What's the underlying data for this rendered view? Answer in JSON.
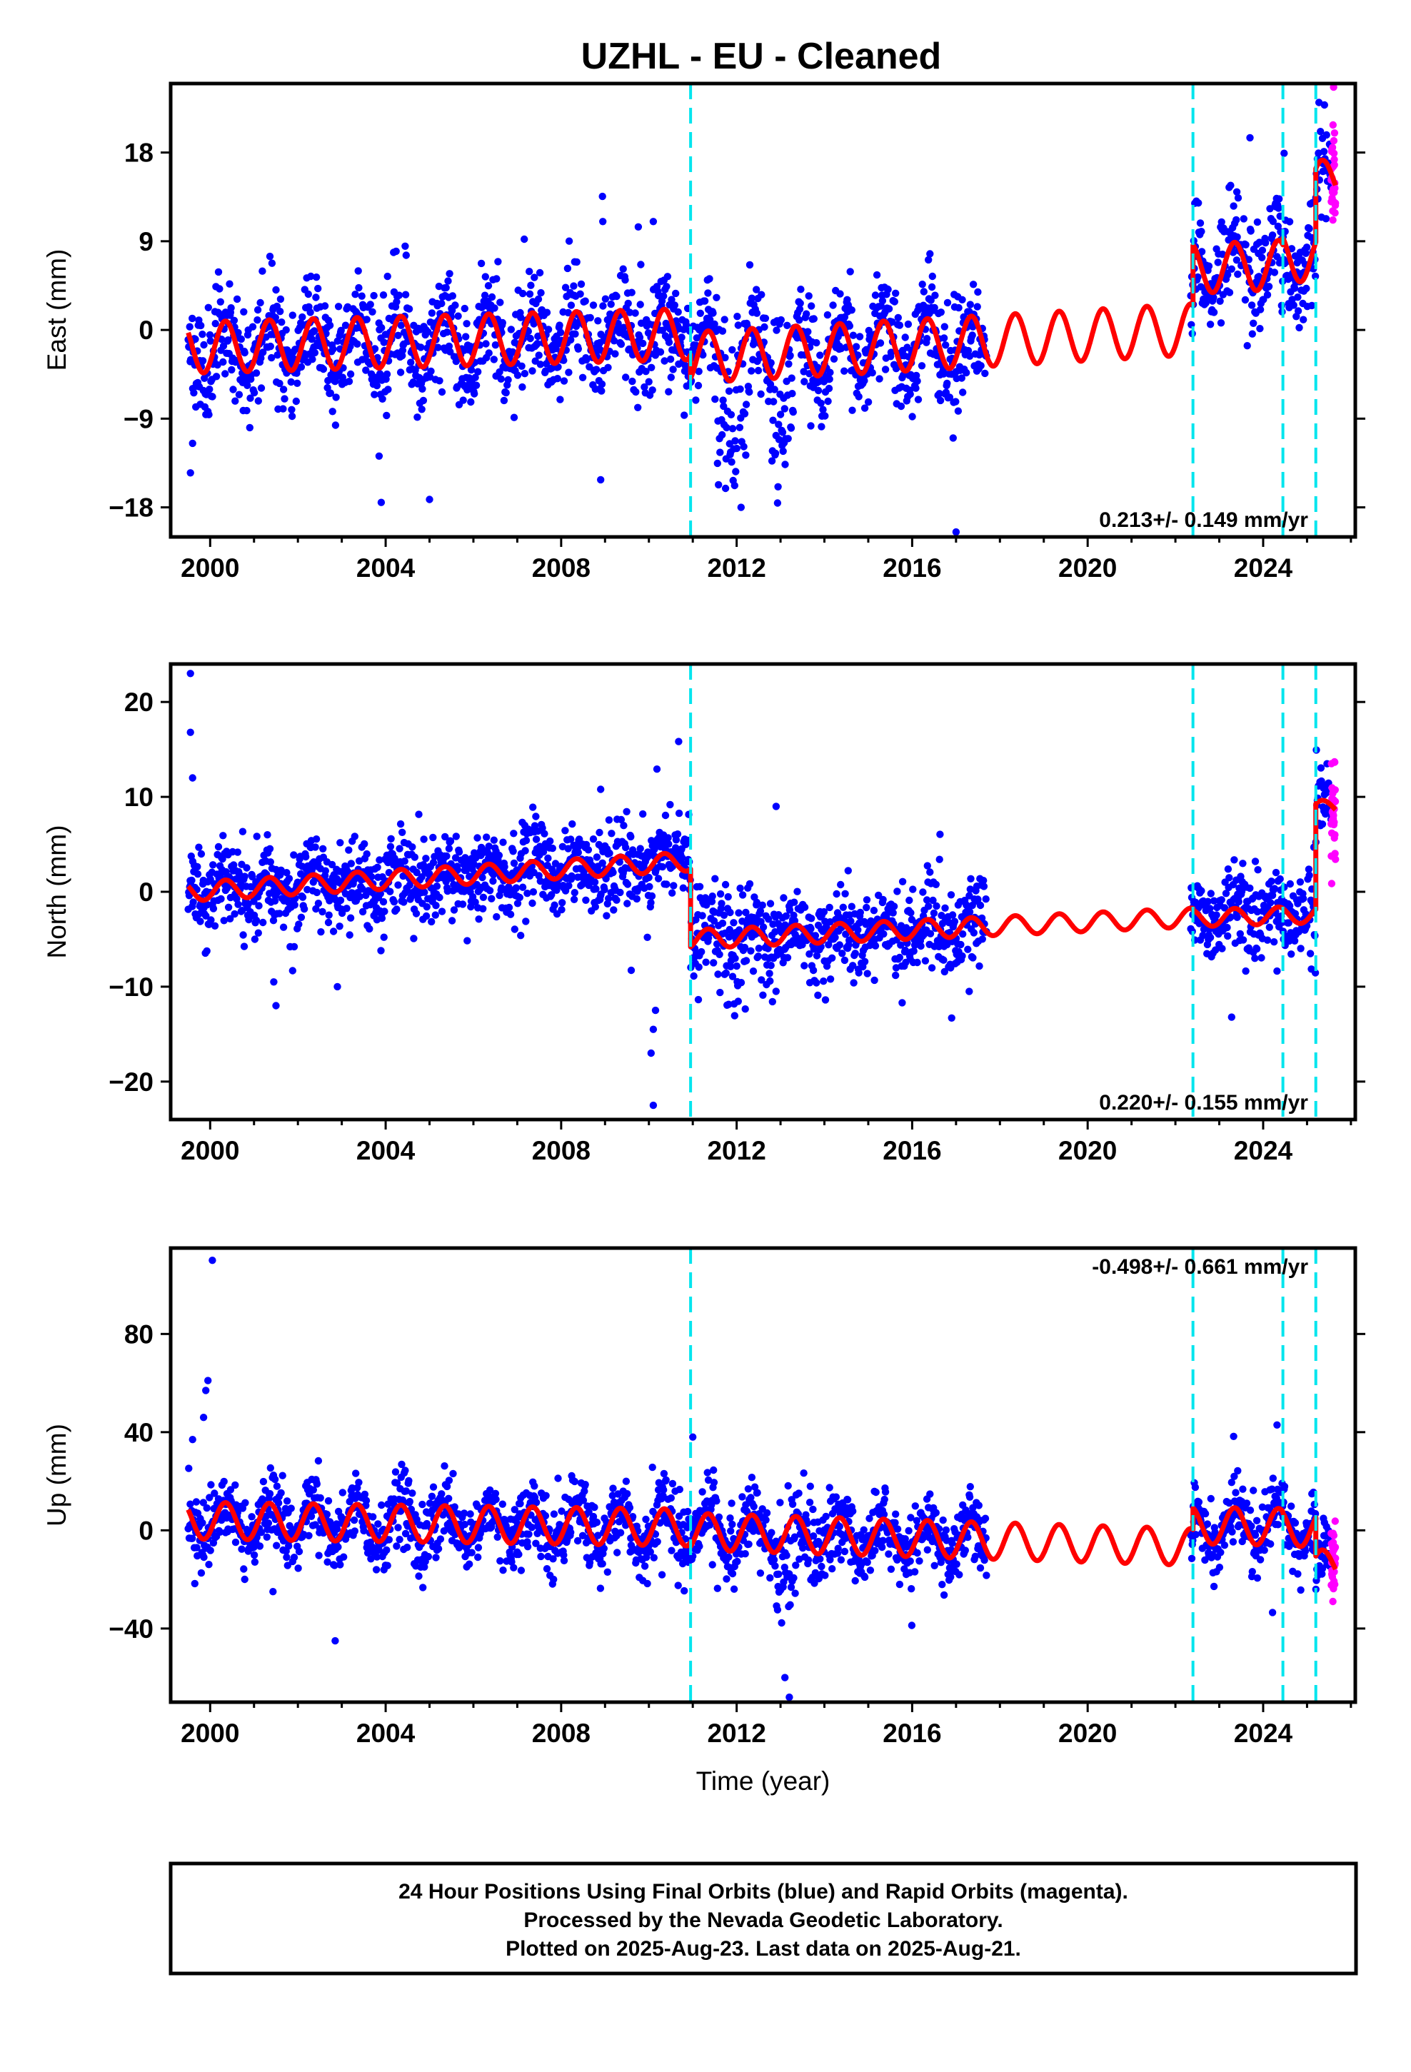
{
  "title": "UZHL  - EU - Cleaned",
  "footer": {
    "lines": [
      "24 Hour Positions Using Final Orbits (blue) and Rapid Orbits (magenta).",
      "Processed by the Nevada Geodetic Laboratory.",
      "Plotted on 2025-Aug-23. Last data on 2025-Aug-21."
    ]
  },
  "colors": {
    "final_orbits": "#0000ff",
    "rapid_orbits": "#ff00ff",
    "model_fit": "#ff0000",
    "breaks": "#00e5ee"
  },
  "chart_data": [
    {
      "type": "scatter",
      "component": "east",
      "ylabel": "East (mm)",
      "xlabel": "",
      "xlim": [
        1999.1,
        2026.1
      ],
      "ylim": [
        -21,
        25
      ],
      "yticks": [
        -18,
        -9,
        0,
        9,
        18
      ],
      "xticks": [
        2000,
        2004,
        2008,
        2012,
        2016,
        2020,
        2024
      ],
      "rate": "0.213+/- 0.149 mm/yr",
      "rate_position": "bottom-right",
      "breaks": [
        2010.95,
        2022.4,
        2024.45,
        2025.2
      ],
      "model": {
        "segments": [
          {
            "t0": 1999.5,
            "t1": 2010.95,
            "offset": -1.8,
            "slope": 0.12,
            "amp": 2.6
          },
          {
            "t0": 2010.95,
            "t1": 2022.4,
            "offset": -2.8,
            "slope": 0.25,
            "amp": 2.6
          },
          {
            "t0": 2022.4,
            "t1": 2024.45,
            "offset": 6.2,
            "slope": 0.2,
            "amp": 2.5
          },
          {
            "t0": 2024.45,
            "t1": 2025.2,
            "offset": 7.3,
            "slope": 0.2,
            "amp": 2.5
          },
          {
            "t0": 2025.2,
            "t1": 2025.65,
            "offset": 15.2,
            "slope": 0.2,
            "amp": 2.0
          }
        ]
      },
      "final_ranges": [
        [
          1999.5,
          2017.7
        ],
        [
          2022.35,
          2025.55
        ]
      ],
      "final_noise": 2.6,
      "rapid_range": [
        2025.55,
        2025.65
      ],
      "rapid_noise": 3.5,
      "anomalies": [
        {
          "t0": 2011.5,
          "t1": 2012.3,
          "shift": -7,
          "noise": 3.5
        },
        {
          "t0": 2012.8,
          "t1": 2013.3,
          "shift": -8,
          "noise": 3.0
        }
      ],
      "outliers": [
        [
          1999.55,
          -14.5
        ],
        [
          1999.6,
          -11.5
        ],
        [
          2003.9,
          -17.5
        ],
        [
          2003.85,
          -12.8
        ],
        [
          2005.0,
          -17.2
        ],
        [
          2008.9,
          -15.2
        ],
        [
          2008.95,
          11
        ],
        [
          2010.1,
          11
        ],
        [
          2012.1,
          -18
        ],
        [
          2014.1,
          -5
        ],
        [
          2017.0,
          -20.5
        ],
        [
          2023.7,
          19.5
        ],
        [
          2023.4,
          14
        ]
      ],
      "seed": 11
    },
    {
      "type": "scatter",
      "component": "north",
      "ylabel": "North (mm)",
      "xlabel": "",
      "xlim": [
        1999.1,
        2026.1
      ],
      "ylim": [
        -24,
        24
      ],
      "yticks": [
        -20,
        -10,
        0,
        10,
        20
      ],
      "xticks": [
        2000,
        2004,
        2008,
        2012,
        2016,
        2020,
        2024
      ],
      "rate": "0.220+/- 0.155 mm/yr",
      "rate_position": "bottom-right",
      "breaks": [
        2010.95,
        2022.4,
        2024.45,
        2025.2
      ],
      "model": {
        "segments": [
          {
            "t0": 1999.5,
            "t1": 2010.95,
            "offset": 0.0,
            "slope": 0.28,
            "amp": 1.0
          },
          {
            "t0": 2010.95,
            "t1": 2022.4,
            "offset": -5.0,
            "slope": 0.2,
            "amp": 1.0
          },
          {
            "t0": 2022.4,
            "t1": 2024.45,
            "offset": -2.8,
            "slope": 0.15,
            "amp": 0.9
          },
          {
            "t0": 2024.45,
            "t1": 2025.2,
            "offset": -2.5,
            "slope": 0.15,
            "amp": 0.9
          },
          {
            "t0": 2025.2,
            "t1": 2025.65,
            "offset": 8.8,
            "slope": 0.2,
            "amp": 0.8
          }
        ]
      },
      "final_ranges": [
        [
          1999.5,
          2017.7
        ],
        [
          2022.35,
          2025.55
        ]
      ],
      "final_noise": 2.2,
      "rapid_range": [
        2025.55,
        2025.65
      ],
      "rapid_noise": 3.0,
      "anomalies": [
        {
          "t0": 2011.6,
          "t1": 2012.2,
          "shift": -3,
          "noise": 3.0
        }
      ],
      "outliers": [
        [
          1999.55,
          23
        ],
        [
          1999.55,
          16.8
        ],
        [
          1999.6,
          12
        ],
        [
          2001.5,
          -12
        ],
        [
          2001.45,
          -9.5
        ],
        [
          2002.9,
          -10
        ],
        [
          2010.1,
          -14.5
        ],
        [
          2010.15,
          -12.5
        ],
        [
          2010.05,
          -17
        ],
        [
          2010.1,
          -22.5
        ],
        [
          2012.9,
          9
        ],
        [
          2008.9,
          10.8
        ],
        [
          2017.3,
          -10.5
        ]
      ],
      "seed": 23
    },
    {
      "type": "scatter",
      "component": "up",
      "ylabel": "Up (mm)",
      "xlabel": "Time (year)",
      "xlim": [
        1999.1,
        2026.1
      ],
      "ylim": [
        -70,
        115
      ],
      "yticks": [
        -40,
        0,
        40,
        80
      ],
      "xticks": [
        2000,
        2004,
        2008,
        2012,
        2016,
        2020,
        2024
      ],
      "rate": "-0.498+/- 0.661 mm/yr",
      "rate_position": "top-right",
      "breaks": [
        2010.95,
        2022.4,
        2024.45,
        2025.2
      ],
      "model": {
        "segments": [
          {
            "t0": 1999.5,
            "t1": 2010.95,
            "offset": 4.0,
            "slope": -0.25,
            "amp": 7.5
          },
          {
            "t0": 2010.95,
            "t1": 2022.4,
            "offset": -0.5,
            "slope": -0.55,
            "amp": 7.5
          },
          {
            "t0": 2022.4,
            "t1": 2024.45,
            "offset": 2.0,
            "slope": -0.3,
            "amp": 7.5
          },
          {
            "t0": 2024.45,
            "t1": 2025.2,
            "offset": 1.0,
            "slope": -0.3,
            "amp": 7.5
          },
          {
            "t0": 2025.2,
            "t1": 2025.65,
            "offset": -14,
            "slope": 0.0,
            "amp": 6.0
          }
        ]
      },
      "final_ranges": [
        [
          1999.5,
          2017.7
        ],
        [
          2022.35,
          2025.55
        ]
      ],
      "final_noise": 7.0,
      "rapid_range": [
        2025.55,
        2025.65
      ],
      "rapid_noise": 9.0,
      "anomalies": [
        {
          "t0": 2012.9,
          "t1": 2013.35,
          "shift": -22,
          "noise": 10
        }
      ],
      "outliers": [
        [
          2000.05,
          110
        ],
        [
          1999.95,
          61
        ],
        [
          1999.9,
          57
        ],
        [
          1999.85,
          46
        ],
        [
          1999.6,
          37
        ],
        [
          2011.0,
          38
        ],
        [
          2002.85,
          -45
        ],
        [
          2013.2,
          -68
        ],
        [
          2013.1,
          -60
        ]
      ],
      "seed": 37
    }
  ]
}
